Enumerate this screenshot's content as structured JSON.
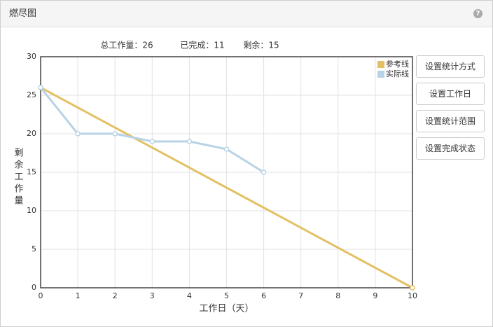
{
  "panel_title": "燃尽图",
  "summary": [
    "总工作量：26",
    "已完成：11",
    "剩余：15"
  ],
  "buttons": [
    "设置统计方式",
    "设置工作日",
    "设置统计范围",
    "设置完成状态"
  ],
  "chart_data": {
    "type": "line",
    "x_label": "工作日（天）",
    "y_label": "剩余工作量",
    "xlim": [
      0,
      10
    ],
    "xticks": [
      0,
      1,
      2,
      3,
      4,
      5,
      6,
      7,
      8,
      9,
      10
    ],
    "ylim": [
      0,
      30
    ],
    "yticks": [
      0,
      5,
      10,
      15,
      20,
      25,
      30
    ],
    "grid": true,
    "legend": "top-right",
    "series": [
      {
        "name": "参考线",
        "color": "#e3c063",
        "x": [
          0,
          10
        ],
        "values": [
          26,
          0
        ]
      },
      {
        "name": "实际线",
        "color": "#b8d3e6",
        "x": [
          0,
          1,
          2,
          3,
          4,
          5,
          6
        ],
        "values": [
          26,
          20,
          20,
          19,
          19,
          18,
          15
        ]
      }
    ]
  }
}
